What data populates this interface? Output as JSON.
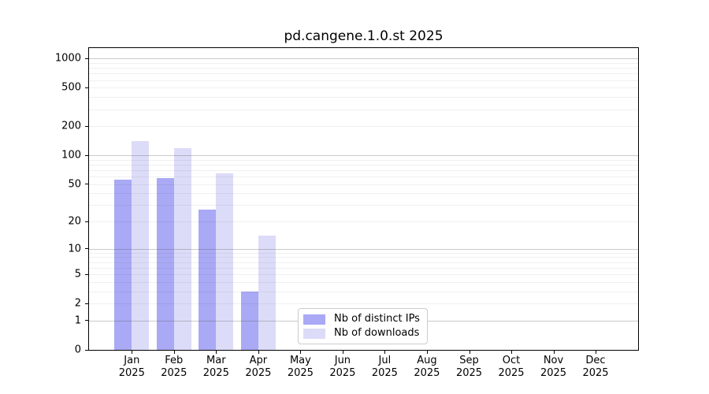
{
  "chart_data": {
    "type": "bar",
    "title": "pd.cangene.1.0.st 2025",
    "x_tick_months": [
      "Jan",
      "Feb",
      "Mar",
      "Apr",
      "May",
      "Jun",
      "Jul",
      "Aug",
      "Sep",
      "Oct",
      "Nov",
      "Dec"
    ],
    "x_tick_year": "2025",
    "y_scale": "log1p",
    "y_ticks": [
      0,
      1,
      2,
      5,
      10,
      20,
      50,
      100,
      200,
      500,
      1000
    ],
    "ylim": [
      0,
      1280
    ],
    "grid": true,
    "legend_position": "inside-bottom-center",
    "series": [
      {
        "name": "Nb of distinct IPs",
        "color": "#a9a9f5",
        "values": [
          56,
          58,
          27,
          3,
          0,
          0,
          0,
          0,
          0,
          0,
          0,
          0
        ]
      },
      {
        "name": "Nb of downloads",
        "color": "#dcdcf8",
        "values": [
          140,
          118,
          65,
          14,
          0,
          0,
          0,
          0,
          0,
          0,
          0,
          0
        ]
      }
    ]
  }
}
